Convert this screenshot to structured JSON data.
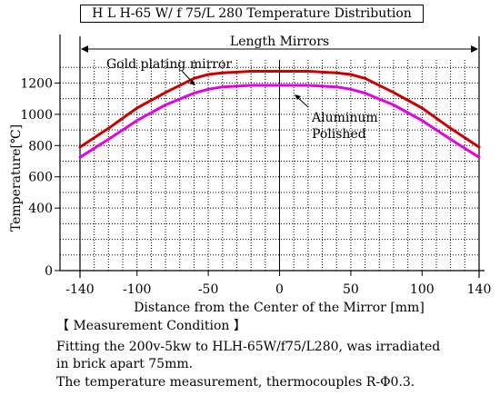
{
  "chart_data": {
    "type": "line",
    "title": "H L H-65 W/ f 75/L 280 Temperature Distribution",
    "xlabel": "Distance from the Center of the Mirror [mm]",
    "ylabel": "Temperature[℃]",
    "xlim": [
      -140,
      140
    ],
    "ylim": [
      0,
      1400
    ],
    "x_ticks": [
      -140,
      -100,
      -50,
      0,
      50,
      100,
      140
    ],
    "y_ticks": [
      0,
      400,
      600,
      800,
      1000,
      1200
    ],
    "grid": "dotted",
    "span_label": "Length Mirrors",
    "series": [
      {
        "name": "Gold plating mirror",
        "color": "#cc0000",
        "x": [
          -140,
          -120,
          -100,
          -80,
          -60,
          -50,
          -40,
          -20,
          0,
          20,
          40,
          50,
          60,
          80,
          100,
          120,
          140
        ],
        "y": [
          790,
          910,
          1040,
          1140,
          1230,
          1255,
          1265,
          1275,
          1275,
          1275,
          1265,
          1255,
          1230,
          1140,
          1040,
          910,
          790
        ]
      },
      {
        "name": "Aluminum Polished",
        "color": "#e600e6",
        "x": [
          -140,
          -120,
          -100,
          -80,
          -60,
          -50,
          -40,
          -20,
          0,
          20,
          40,
          50,
          60,
          80,
          100,
          120,
          140
        ],
        "y": [
          725,
          840,
          960,
          1060,
          1135,
          1160,
          1175,
          1185,
          1185,
          1185,
          1175,
          1160,
          1135,
          1060,
          960,
          840,
          725
        ]
      }
    ],
    "annotations": [
      {
        "text": "Gold plating mirror",
        "target": "Gold plating mirror"
      },
      {
        "text": "Aluminum",
        "target": "Aluminum Polished"
      },
      {
        "text": "Polished",
        "target": "Aluminum Polished"
      }
    ]
  },
  "notes": {
    "header": "【  Measurement Condition  】",
    "line1": "Fitting the 200v-5kw to HLH-65W/f75/L280, was irradiated",
    "line2": "in brick apart 75mm.",
    "line3": "The temperature measurement, thermocouples R-Φ0.3."
  }
}
